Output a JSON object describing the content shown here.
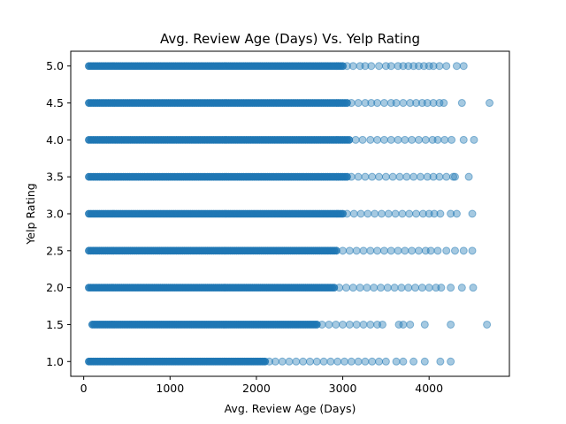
{
  "chart_data": {
    "type": "scatter",
    "title": "Avg. Review Age (Days) Vs. Yelp Rating",
    "xlabel": "Avg. Review Age (Days)",
    "ylabel": "Yelp Rating",
    "xlim": [
      -150,
      4930
    ],
    "ylim": [
      0.8,
      5.2
    ],
    "xticks": [
      0,
      1000,
      2000,
      3000,
      4000
    ],
    "yticks": [
      1.0,
      1.5,
      2.0,
      2.5,
      3.0,
      3.5,
      4.0,
      4.5,
      5.0
    ],
    "ytick_labels": [
      "1.0",
      "1.5",
      "2.0",
      "2.5",
      "3.0",
      "3.5",
      "4.0",
      "4.5",
      "5.0"
    ],
    "grid": false,
    "marker_color": "#1f77b4",
    "marker_alpha": 0.4,
    "series": [
      {
        "rows": [
          {
            "y": 5.0,
            "dense_x": [
              60,
              3000
            ],
            "outliers_x": [
              3050,
              3120,
              3200,
              3260,
              3330,
              3420,
              3500,
              3560,
              3640,
              3700,
              3760,
              3820,
              3880,
              3940,
              4000,
              4050,
              4120,
              4200,
              4320,
              4400
            ]
          },
          {
            "y": 4.5,
            "dense_x": [
              60,
              3050
            ],
            "outliers_x": [
              3100,
              3180,
              3260,
              3330,
              3400,
              3480,
              3560,
              3620,
              3700,
              3780,
              3850,
              3920,
              3980,
              4050,
              4120,
              4170,
              4380,
              4700
            ]
          },
          {
            "y": 4.0,
            "dense_x": [
              60,
              3100
            ],
            "outliers_x": [
              3150,
              3230,
              3320,
              3400,
              3480,
              3560,
              3640,
              3720,
              3800,
              3880,
              3960,
              4040,
              4100,
              4180,
              4260,
              4400,
              4520
            ]
          },
          {
            "y": 3.5,
            "dense_x": [
              60,
              3050
            ],
            "outliers_x": [
              3100,
              3180,
              3260,
              3340,
              3420,
              3500,
              3580,
              3660,
              3740,
              3820,
              3900,
              3980,
              4050,
              4120,
              4200,
              4280,
              4300,
              4460
            ]
          },
          {
            "y": 3.0,
            "dense_x": [
              60,
              3000
            ],
            "outliers_x": [
              3050,
              3130,
              3210,
              3290,
              3370,
              3450,
              3530,
              3610,
              3690,
              3770,
              3850,
              3930,
              4000,
              4060,
              4130,
              4250,
              4320,
              4500
            ]
          },
          {
            "y": 2.5,
            "dense_x": [
              60,
              2950
            ],
            "outliers_x": [
              3000,
              3080,
              3160,
              3240,
              3320,
              3400,
              3480,
              3560,
              3640,
              3720,
              3800,
              3880,
              3960,
              4020,
              4100,
              4200,
              4300,
              4400,
              4500
            ]
          },
          {
            "y": 2.0,
            "dense_x": [
              60,
              2900
            ],
            "outliers_x": [
              2960,
              3040,
              3120,
              3200,
              3280,
              3360,
              3440,
              3520,
              3600,
              3680,
              3760,
              3840,
              3920,
              4000,
              4080,
              4140,
              4250,
              4380,
              4510
            ]
          },
          {
            "y": 1.5,
            "dense_x": [
              100,
              2700
            ],
            "outliers_x": [
              2760,
              2840,
              2920,
              3000,
              3080,
              3160,
              3240,
              3320,
              3400,
              3460,
              3650,
              3700,
              3780,
              3950,
              4250,
              4670
            ]
          },
          {
            "y": 1.0,
            "dense_x": [
              60,
              2100
            ],
            "outliers_x": [
              2150,
              2220,
              2300,
              2380,
              2460,
              2540,
              2620,
              2700,
              2780,
              2860,
              2940,
              3020,
              3100,
              3180,
              3260,
              3340,
              3420,
              3500,
              3620,
              3700,
              3820,
              3950,
              4130,
              4250
            ]
          }
        ]
      }
    ]
  }
}
